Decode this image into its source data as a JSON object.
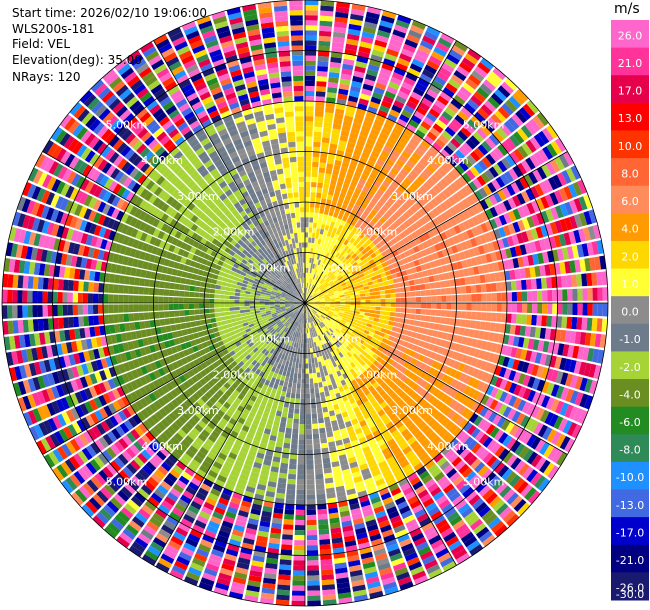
{
  "header": {
    "start_time": "Start time: 2026/02/10 19:06:00",
    "instrument": "WLS200s-181",
    "field": "Field: VEL",
    "elevation": "Elevation(deg): 35.00",
    "nrays": "NRays: 120"
  },
  "chart_data": {
    "type": "ppi",
    "field": "VEL",
    "n_rays": 120,
    "elevation_deg": 35.0,
    "max_range_km": 6.0,
    "range_ring_labels": [
      "1.00km",
      "2.00km",
      "3.00km",
      "4.00km",
      "5.00km"
    ],
    "colorbar": {
      "unit": "m/s",
      "ticks": [
        "26.0",
        "21.0",
        "17.0",
        "13.0",
        "10.0",
        "8.0",
        "6.0",
        "4.0",
        "2.0",
        "1.0",
        "0.0",
        "-1.0",
        "-2.0",
        "-4.0",
        "-6.0",
        "-8.0",
        "-10.0",
        "-13.0",
        "-17.0",
        "-21.0",
        "-26.0",
        "-30.0"
      ],
      "colors": [
        "#ff66cc",
        "#ff3399",
        "#e6004c",
        "#ff0000",
        "#ff3300",
        "#ff6633",
        "#ff8c5a",
        "#ff9a00",
        "#ffd700",
        "#ffff33",
        "#8c8c8c",
        "#6e7b8b",
        "#a6d335",
        "#6b8e23",
        "#228b22",
        "#2e8b57",
        "#1e90ff",
        "#4169e1",
        "#0000cd",
        "#000080",
        "#191970"
      ],
      "vmin": -30,
      "vmax": 30
    },
    "pattern_summary": "Radial velocity PPI: positive (yellow/orange) toward east and north, negative (green/blue) toward west and south; noisy speckle beyond ~4 km."
  }
}
